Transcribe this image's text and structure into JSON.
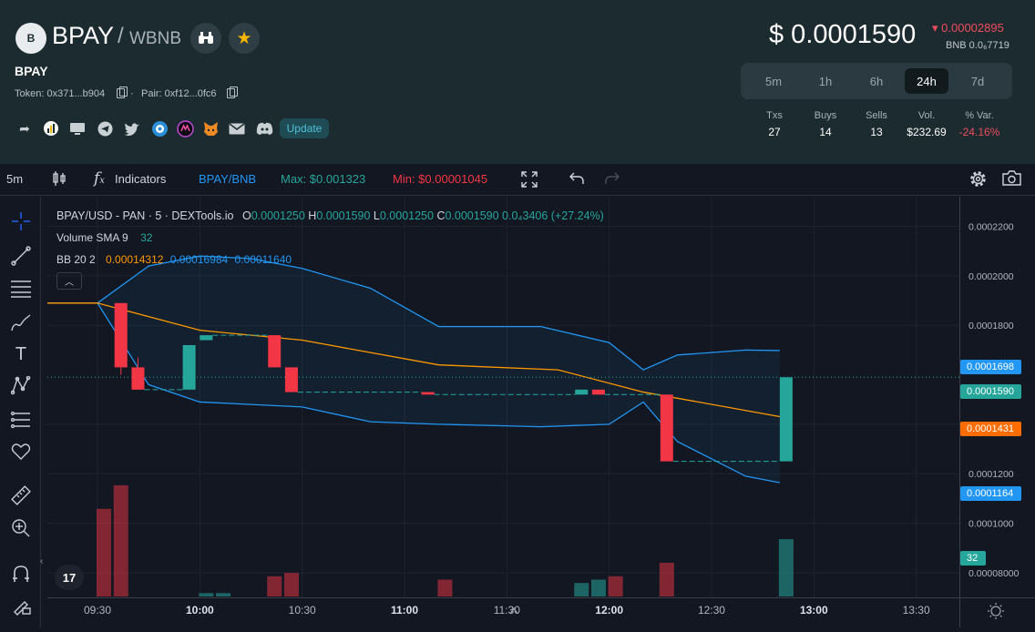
{
  "header": {
    "token_logo_letter": "B",
    "pair_base": "BPAY",
    "pair_sep": "/",
    "pair_quote": "WBNB",
    "token_name": "BPAY",
    "token_address": "Token: 0x371...b904",
    "pair_address": "Pair: 0xf12...0fc6",
    "update_label": "Update",
    "price": "$ 0.0001590",
    "price_change": "▾ 0.00002895",
    "bnb_price": "BNB 0.0₆7719",
    "timeframes": [
      "5m",
      "1h",
      "6h",
      "24h",
      "7d"
    ],
    "active_timeframe": "24h",
    "stats": [
      {
        "label": "Txs",
        "value": "27"
      },
      {
        "label": "Buys",
        "value": "14"
      },
      {
        "label": "Sells",
        "value": "13"
      },
      {
        "label": "Vol.",
        "value": "$232.69"
      },
      {
        "label": "% Var.",
        "value": "-24.16%"
      }
    ]
  },
  "toolbar": {
    "interval": "5m",
    "indicators_label": "Indicators",
    "pair_label": "BPAY/BNB",
    "max_label": "Max: $0.001323",
    "min_label": "Min: $0.00001045"
  },
  "legend": {
    "symbol": "BPAY/USD - PAN · 5 · DEXTools.io",
    "o_key": "O",
    "o_val": "0.0001250",
    "h_key": "H",
    "h_val": "0.0001590",
    "l_key": "L",
    "l_val": "0.0001250",
    "c_key": "C",
    "c_val": "0.0001590",
    "change": "0.0₄3406 (+27.24%)",
    "volume_label": "Volume SMA 9",
    "volume_val": "32",
    "bb_label": "BB 20 2",
    "bb_mid": "0.00014312",
    "bb_upper": "0.00016984",
    "bb_lower": "0.00011640",
    "tv_logo": "17"
  },
  "price_labels": {
    "upper": "0.0001698",
    "close": "0.0001590",
    "mid": "0.0001431",
    "lower": "0.0001164",
    "volume": "32"
  },
  "colors": {
    "up": "#26a69a",
    "down": "#f23645",
    "bb_band": "#2196f3",
    "bb_mid": "#ff9800",
    "header_bg": "#1b2b30"
  },
  "chart_data": {
    "type": "candlestick",
    "y_ticks": [
      "0.0002200",
      "0.0002000",
      "0.0001800",
      "0.0001400",
      "0.0001200",
      "0.0001000",
      "0.00008000"
    ],
    "x_ticks": [
      "09:30",
      "10:00",
      "10:30",
      "11:00",
      "11:30",
      "12:00",
      "12:30",
      "13:00",
      "13:30"
    ],
    "ylim": [
      7e-05,
      0.000232
    ],
    "candles": [
      {
        "t": "09:35",
        "o": 0.000189,
        "h": 0.000189,
        "l": 0.00016,
        "c": 0.000163
      },
      {
        "t": "09:40",
        "o": 0.000163,
        "h": 0.000167,
        "l": 0.000154,
        "c": 0.000154
      },
      {
        "t": "09:55",
        "o": 0.000154,
        "h": 0.000172,
        "l": 0.000154,
        "c": 0.000172
      },
      {
        "t": "10:00",
        "o": 0.000174,
        "h": 0.000176,
        "l": 0.000174,
        "c": 0.000176
      },
      {
        "t": "10:20",
        "o": 0.000176,
        "h": 0.000176,
        "l": 0.000163,
        "c": 0.000163
      },
      {
        "t": "10:25",
        "o": 0.000163,
        "h": 0.000163,
        "l": 0.000153,
        "c": 0.000153
      },
      {
        "t": "11:05",
        "o": 0.000153,
        "h": 0.000153,
        "l": 0.000152,
        "c": 0.000152
      },
      {
        "t": "11:50",
        "o": 0.000152,
        "h": 0.000154,
        "l": 0.000152,
        "c": 0.000154
      },
      {
        "t": "11:55",
        "o": 0.000154,
        "h": 0.000154,
        "l": 0.000152,
        "c": 0.000152
      },
      {
        "t": "12:15",
        "o": 0.000152,
        "h": 0.000152,
        "l": 0.000125,
        "c": 0.000125
      },
      {
        "t": "12:50",
        "o": 0.000125,
        "h": 0.000159,
        "l": 0.000125,
        "c": 0.000159
      }
    ],
    "volume": [
      {
        "t": "09:30",
        "v": 26,
        "dir": "down"
      },
      {
        "t": "09:35",
        "v": 33,
        "dir": "down"
      },
      {
        "t": "10:00",
        "v": 1,
        "dir": "up"
      },
      {
        "t": "10:05",
        "v": 1,
        "dir": "up"
      },
      {
        "t": "10:20",
        "v": 6,
        "dir": "down"
      },
      {
        "t": "10:25",
        "v": 7,
        "dir": "down"
      },
      {
        "t": "11:10",
        "v": 5,
        "dir": "down"
      },
      {
        "t": "11:50",
        "v": 4,
        "dir": "up"
      },
      {
        "t": "11:55",
        "v": 5,
        "dir": "up"
      },
      {
        "t": "12:00",
        "v": 6,
        "dir": "down"
      },
      {
        "t": "12:15",
        "v": 10,
        "dir": "down"
      },
      {
        "t": "12:50",
        "v": 17,
        "dir": "up"
      }
    ],
    "bb_upper": [
      {
        "t": "09:00",
        "y": 0.000189
      },
      {
        "t": "09:30",
        "y": 0.000189
      },
      {
        "t": "09:45",
        "y": 0.000204
      },
      {
        "t": "10:00",
        "y": 0.000208
      },
      {
        "t": "10:15",
        "y": 0.000207
      },
      {
        "t": "10:30",
        "y": 0.000203
      },
      {
        "t": "10:50",
        "y": 0.000195
      },
      {
        "t": "11:10",
        "y": 0.0001795
      },
      {
        "t": "11:40",
        "y": 0.0001795
      },
      {
        "t": "12:00",
        "y": 0.000173
      },
      {
        "t": "12:10",
        "y": 0.000162
      },
      {
        "t": "12:20",
        "y": 0.000168
      },
      {
        "t": "12:40",
        "y": 0.00017
      },
      {
        "t": "12:50",
        "y": 0.0001698
      }
    ],
    "bb_mid": [
      {
        "t": "09:00",
        "y": 0.000189
      },
      {
        "t": "09:30",
        "y": 0.000189
      },
      {
        "t": "10:00",
        "y": 0.000178
      },
      {
        "t": "10:30",
        "y": 0.000174
      },
      {
        "t": "11:10",
        "y": 0.000164
      },
      {
        "t": "11:45",
        "y": 0.000162
      },
      {
        "t": "12:10",
        "y": 0.000153
      },
      {
        "t": "12:50",
        "y": 0.0001431
      }
    ],
    "bb_lower": [
      {
        "t": "09:00",
        "y": 0.000189
      },
      {
        "t": "09:30",
        "y": 0.000189
      },
      {
        "t": "09:45",
        "y": 0.000156
      },
      {
        "t": "10:00",
        "y": 0.000149
      },
      {
        "t": "10:30",
        "y": 0.000147
      },
      {
        "t": "10:50",
        "y": 0.000141
      },
      {
        "t": "11:10",
        "y": 0.00014
      },
      {
        "t": "11:40",
        "y": 0.000139
      },
      {
        "t": "12:00",
        "y": 0.00014
      },
      {
        "t": "12:10",
        "y": 0.000149
      },
      {
        "t": "12:20",
        "y": 0.000133
      },
      {
        "t": "12:40",
        "y": 0.000119
      },
      {
        "t": "12:50",
        "y": 0.0001164
      }
    ]
  }
}
